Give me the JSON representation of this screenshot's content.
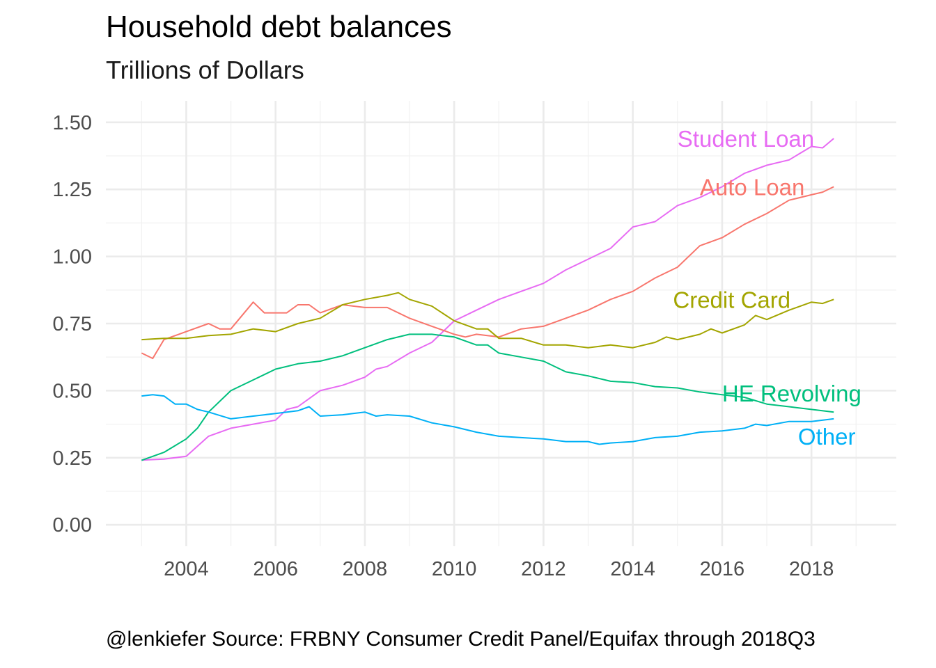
{
  "chart_data": {
    "type": "line",
    "title": "Household debt balances",
    "subtitle": "Trillions of Dollars",
    "caption": "@lenkiefer Source: FRBNY Consumer Credit Panel/Equifax through 2018Q3",
    "xlabel": "",
    "ylabel": "",
    "xlim": [
      2002.2,
      2019.9
    ],
    "ylim": [
      -0.08,
      1.58
    ],
    "x_ticks": [
      2004,
      2006,
      2008,
      2010,
      2012,
      2014,
      2016,
      2018
    ],
    "x_tick_labels": [
      "2004",
      "2006",
      "2008",
      "2010",
      "2012",
      "2014",
      "2016",
      "2018"
    ],
    "y_ticks": [
      0,
      0.25,
      0.5,
      0.75,
      1.0,
      1.25,
      1.5
    ],
    "y_tick_labels": [
      "0.00",
      "0.25",
      "0.50",
      "0.75",
      "1.00",
      "1.25",
      "1.50"
    ],
    "grid": true,
    "legend": "none",
    "series": [
      {
        "name": "Student Loan",
        "color": "#E76BF3",
        "label_at": [
          2015.0,
          1.44
        ],
        "points": [
          [
            2003.0,
            0.241
          ],
          [
            2003.5,
            0.245
          ],
          [
            2004.0,
            0.255
          ],
          [
            2004.5,
            0.33
          ],
          [
            2005.0,
            0.36
          ],
          [
            2005.5,
            0.375
          ],
          [
            2006.0,
            0.39
          ],
          [
            2006.25,
            0.43
          ],
          [
            2006.5,
            0.44
          ],
          [
            2007.0,
            0.5
          ],
          [
            2007.5,
            0.52
          ],
          [
            2008.0,
            0.55
          ],
          [
            2008.25,
            0.58
          ],
          [
            2008.5,
            0.59
          ],
          [
            2009.0,
            0.64
          ],
          [
            2009.5,
            0.68
          ],
          [
            2010.0,
            0.76
          ],
          [
            2010.5,
            0.8
          ],
          [
            2011.0,
            0.84
          ],
          [
            2011.5,
            0.87
          ],
          [
            2012.0,
            0.9
          ],
          [
            2012.5,
            0.95
          ],
          [
            2013.0,
            0.99
          ],
          [
            2013.5,
            1.03
          ],
          [
            2014.0,
            1.11
          ],
          [
            2014.5,
            1.13
          ],
          [
            2015.0,
            1.19
          ],
          [
            2015.5,
            1.22
          ],
          [
            2016.0,
            1.26
          ],
          [
            2016.5,
            1.31
          ],
          [
            2017.0,
            1.34
          ],
          [
            2017.5,
            1.36
          ],
          [
            2018.0,
            1.41
          ],
          [
            2018.25,
            1.405
          ],
          [
            2018.5,
            1.44
          ]
        ]
      },
      {
        "name": "Auto Loan",
        "color": "#F8766D",
        "label_at": [
          2015.5,
          1.26
        ],
        "points": [
          [
            2003.0,
            0.64
          ],
          [
            2003.25,
            0.62
          ],
          [
            2003.5,
            0.69
          ],
          [
            2004.0,
            0.72
          ],
          [
            2004.5,
            0.75
          ],
          [
            2004.75,
            0.73
          ],
          [
            2005.0,
            0.73
          ],
          [
            2005.5,
            0.83
          ],
          [
            2005.75,
            0.79
          ],
          [
            2006.0,
            0.79
          ],
          [
            2006.25,
            0.79
          ],
          [
            2006.5,
            0.82
          ],
          [
            2006.75,
            0.82
          ],
          [
            2007.0,
            0.79
          ],
          [
            2007.5,
            0.82
          ],
          [
            2008.0,
            0.81
          ],
          [
            2008.5,
            0.81
          ],
          [
            2009.0,
            0.77
          ],
          [
            2009.5,
            0.74
          ],
          [
            2010.0,
            0.71
          ],
          [
            2010.25,
            0.7
          ],
          [
            2010.5,
            0.71
          ],
          [
            2011.0,
            0.7
          ],
          [
            2011.5,
            0.73
          ],
          [
            2012.0,
            0.74
          ],
          [
            2012.5,
            0.77
          ],
          [
            2013.0,
            0.8
          ],
          [
            2013.5,
            0.84
          ],
          [
            2014.0,
            0.87
          ],
          [
            2014.5,
            0.92
          ],
          [
            2015.0,
            0.96
          ],
          [
            2015.5,
            1.04
          ],
          [
            2016.0,
            1.07
          ],
          [
            2016.5,
            1.12
          ],
          [
            2017.0,
            1.16
          ],
          [
            2017.5,
            1.21
          ],
          [
            2018.0,
            1.23
          ],
          [
            2018.25,
            1.24
          ],
          [
            2018.5,
            1.26
          ]
        ]
      },
      {
        "name": "Credit Card",
        "color": "#A3A500",
        "label_at": [
          2014.9,
          0.84
        ],
        "points": [
          [
            2003.0,
            0.69
          ],
          [
            2003.5,
            0.695
          ],
          [
            2004.0,
            0.695
          ],
          [
            2004.5,
            0.705
          ],
          [
            2005.0,
            0.71
          ],
          [
            2005.5,
            0.73
          ],
          [
            2006.0,
            0.72
          ],
          [
            2006.5,
            0.75
          ],
          [
            2007.0,
            0.77
          ],
          [
            2007.5,
            0.82
          ],
          [
            2008.0,
            0.84
          ],
          [
            2008.5,
            0.855
          ],
          [
            2008.75,
            0.865
          ],
          [
            2009.0,
            0.84
          ],
          [
            2009.5,
            0.815
          ],
          [
            2010.0,
            0.76
          ],
          [
            2010.5,
            0.73
          ],
          [
            2010.75,
            0.73
          ],
          [
            2011.0,
            0.695
          ],
          [
            2011.5,
            0.695
          ],
          [
            2012.0,
            0.67
          ],
          [
            2012.5,
            0.67
          ],
          [
            2013.0,
            0.66
          ],
          [
            2013.5,
            0.67
          ],
          [
            2014.0,
            0.66
          ],
          [
            2014.5,
            0.68
          ],
          [
            2014.75,
            0.7
          ],
          [
            2015.0,
            0.69
          ],
          [
            2015.5,
            0.71
          ],
          [
            2015.75,
            0.73
          ],
          [
            2016.0,
            0.715
          ],
          [
            2016.5,
            0.745
          ],
          [
            2016.75,
            0.78
          ],
          [
            2017.0,
            0.765
          ],
          [
            2017.5,
            0.8
          ],
          [
            2018.0,
            0.83
          ],
          [
            2018.25,
            0.825
          ],
          [
            2018.5,
            0.84
          ]
        ]
      },
      {
        "name": "HE Revolving",
        "color": "#00BF7D",
        "label_at": [
          2016.0,
          0.49
        ],
        "points": [
          [
            2003.0,
            0.24
          ],
          [
            2003.5,
            0.27
          ],
          [
            2004.0,
            0.32
          ],
          [
            2004.25,
            0.36
          ],
          [
            2004.5,
            0.42
          ],
          [
            2005.0,
            0.5
          ],
          [
            2005.5,
            0.54
          ],
          [
            2006.0,
            0.58
          ],
          [
            2006.5,
            0.6
          ],
          [
            2007.0,
            0.61
          ],
          [
            2007.5,
            0.63
          ],
          [
            2008.0,
            0.66
          ],
          [
            2008.5,
            0.69
          ],
          [
            2009.0,
            0.71
          ],
          [
            2009.5,
            0.71
          ],
          [
            2010.0,
            0.7
          ],
          [
            2010.5,
            0.67
          ],
          [
            2010.75,
            0.67
          ],
          [
            2011.0,
            0.64
          ],
          [
            2011.5,
            0.625
          ],
          [
            2012.0,
            0.61
          ],
          [
            2012.5,
            0.57
          ],
          [
            2013.0,
            0.555
          ],
          [
            2013.5,
            0.535
          ],
          [
            2014.0,
            0.53
          ],
          [
            2014.5,
            0.515
          ],
          [
            2015.0,
            0.51
          ],
          [
            2015.5,
            0.495
          ],
          [
            2016.0,
            0.485
          ],
          [
            2016.5,
            0.475
          ],
          [
            2017.0,
            0.45
          ],
          [
            2017.5,
            0.44
          ],
          [
            2018.0,
            0.43
          ],
          [
            2018.5,
            0.42
          ]
        ]
      },
      {
        "name": "Other",
        "color": "#00B0F6",
        "label_at": [
          2017.7,
          0.33
        ],
        "points": [
          [
            2003.0,
            0.48
          ],
          [
            2003.25,
            0.485
          ],
          [
            2003.5,
            0.48
          ],
          [
            2003.75,
            0.45
          ],
          [
            2004.0,
            0.45
          ],
          [
            2004.25,
            0.43
          ],
          [
            2004.5,
            0.42
          ],
          [
            2005.0,
            0.395
          ],
          [
            2005.5,
            0.405
          ],
          [
            2006.0,
            0.415
          ],
          [
            2006.5,
            0.425
          ],
          [
            2006.75,
            0.44
          ],
          [
            2007.0,
            0.405
          ],
          [
            2007.5,
            0.41
          ],
          [
            2008.0,
            0.42
          ],
          [
            2008.25,
            0.405
          ],
          [
            2008.5,
            0.41
          ],
          [
            2009.0,
            0.405
          ],
          [
            2009.5,
            0.38
          ],
          [
            2010.0,
            0.365
          ],
          [
            2010.5,
            0.345
          ],
          [
            2011.0,
            0.33
          ],
          [
            2011.5,
            0.325
          ],
          [
            2012.0,
            0.32
          ],
          [
            2012.5,
            0.31
          ],
          [
            2013.0,
            0.31
          ],
          [
            2013.25,
            0.3
          ],
          [
            2013.5,
            0.305
          ],
          [
            2014.0,
            0.31
          ],
          [
            2014.5,
            0.325
          ],
          [
            2015.0,
            0.33
          ],
          [
            2015.5,
            0.345
          ],
          [
            2016.0,
            0.35
          ],
          [
            2016.5,
            0.36
          ],
          [
            2016.75,
            0.375
          ],
          [
            2017.0,
            0.37
          ],
          [
            2017.5,
            0.385
          ],
          [
            2018.0,
            0.385
          ],
          [
            2018.5,
            0.395
          ]
        ]
      }
    ]
  }
}
